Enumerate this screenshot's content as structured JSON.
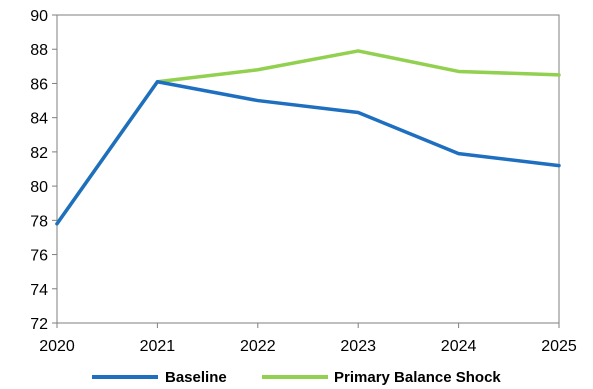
{
  "chart_data": {
    "type": "line",
    "title": "",
    "xlabel": "",
    "ylabel": "",
    "x": [
      "2020",
      "2021",
      "2022",
      "2023",
      "2024",
      "2025"
    ],
    "ylim": [
      72,
      90
    ],
    "yticks": [
      "72",
      "74",
      "76",
      "78",
      "80",
      "82",
      "84",
      "86",
      "88",
      "90"
    ],
    "grid": false,
    "legend": "bottom",
    "series": [
      {
        "name": "Baseline",
        "color": "#1f6fc0",
        "values": [
          77.8,
          86.1,
          85.0,
          84.3,
          81.9,
          81.2
        ]
      },
      {
        "name": "Primary Balance Shock",
        "color": "#92d050",
        "values": [
          77.8,
          86.1,
          86.8,
          87.9,
          86.7,
          86.5
        ]
      }
    ]
  }
}
